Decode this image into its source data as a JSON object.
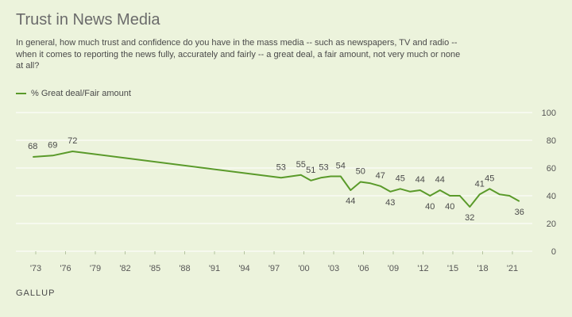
{
  "header": {
    "title": "Trust in News Media",
    "subtitle": "In general, how much trust and confidence do you have in the mass media -- such as newspapers, TV and radio -- when it comes to reporting the news fully, accurately and fairly -- a great deal, a fair amount, not very much or none at all?"
  },
  "footer": {
    "brand": "GALLUP"
  },
  "colors": {
    "line": "#5a9a2a",
    "grid": "#ffffff",
    "background": "#ecf3dc"
  },
  "chart_data": {
    "type": "line",
    "title": "Trust in News Media",
    "xlabel": "",
    "ylabel": "",
    "ylim": [
      0,
      100
    ],
    "yticks": [
      0,
      20,
      40,
      60,
      80,
      100
    ],
    "xlim": [
      1971,
      2023
    ],
    "xticks": [
      1973,
      1976,
      1979,
      1982,
      1985,
      1988,
      1991,
      1994,
      1997,
      2000,
      2003,
      2006,
      2009,
      2012,
      2015,
      2018,
      2021
    ],
    "xtick_labels": [
      "'73",
      "'76",
      "'79",
      "'82",
      "'85",
      "'88",
      "'91",
      "'94",
      "'97",
      "'00",
      "'03",
      "'06",
      "'09",
      "'12",
      "'15",
      "'18",
      "'21"
    ],
    "grid": true,
    "legend_position": "top-left",
    "series": [
      {
        "name": "% Great deal/Fair amount",
        "points": [
          [
            1972.7,
            68
          ],
          [
            1974.7,
            69
          ],
          [
            1976.7,
            72
          ],
          [
            1997.7,
            53
          ],
          [
            1999.7,
            55
          ],
          [
            2000.7,
            51
          ],
          [
            2001.7,
            53
          ],
          [
            2002.7,
            54
          ],
          [
            2003.7,
            54
          ],
          [
            2004.7,
            44
          ],
          [
            2005.7,
            50
          ],
          [
            2006.7,
            49
          ],
          [
            2007.7,
            47
          ],
          [
            2008.7,
            43
          ],
          [
            2009.7,
            45
          ],
          [
            2010.7,
            43
          ],
          [
            2011.7,
            44
          ],
          [
            2012.7,
            40
          ],
          [
            2013.7,
            44
          ],
          [
            2014.7,
            40
          ],
          [
            2015.7,
            40
          ],
          [
            2016.7,
            32
          ],
          [
            2017.7,
            41
          ],
          [
            2018.7,
            45
          ],
          [
            2019.7,
            41
          ],
          [
            2020.7,
            40
          ],
          [
            2021.7,
            36
          ]
        ],
        "labels": [
          {
            "x": 1972.7,
            "y": 68,
            "text": "68",
            "pos": "above"
          },
          {
            "x": 1974.7,
            "y": 69,
            "text": "69",
            "pos": "above"
          },
          {
            "x": 1976.7,
            "y": 72,
            "text": "72",
            "pos": "above"
          },
          {
            "x": 1997.7,
            "y": 53,
            "text": "53",
            "pos": "above"
          },
          {
            "x": 1999.7,
            "y": 55,
            "text": "55",
            "pos": "above"
          },
          {
            "x": 2000.7,
            "y": 51,
            "text": "51",
            "pos": "above"
          },
          {
            "x": 2002.0,
            "y": 53,
            "text": "53",
            "pos": "above"
          },
          {
            "x": 2003.7,
            "y": 54,
            "text": "54",
            "pos": "above"
          },
          {
            "x": 2004.7,
            "y": 44,
            "text": "44",
            "pos": "below"
          },
          {
            "x": 2005.7,
            "y": 50,
            "text": "50",
            "pos": "above"
          },
          {
            "x": 2007.7,
            "y": 47,
            "text": "47",
            "pos": "above"
          },
          {
            "x": 2008.7,
            "y": 43,
            "text": "43",
            "pos": "below"
          },
          {
            "x": 2009.7,
            "y": 45,
            "text": "45",
            "pos": "above"
          },
          {
            "x": 2011.7,
            "y": 44,
            "text": "44",
            "pos": "above"
          },
          {
            "x": 2012.7,
            "y": 40,
            "text": "40",
            "pos": "below"
          },
          {
            "x": 2013.7,
            "y": 44,
            "text": "44",
            "pos": "above"
          },
          {
            "x": 2014.7,
            "y": 40,
            "text": "40",
            "pos": "below"
          },
          {
            "x": 2016.7,
            "y": 32,
            "text": "32",
            "pos": "below"
          },
          {
            "x": 2017.7,
            "y": 41,
            "text": "41",
            "pos": "above"
          },
          {
            "x": 2018.7,
            "y": 45,
            "text": "45",
            "pos": "above"
          },
          {
            "x": 2021.7,
            "y": 36,
            "text": "36",
            "pos": "below"
          }
        ]
      }
    ]
  }
}
